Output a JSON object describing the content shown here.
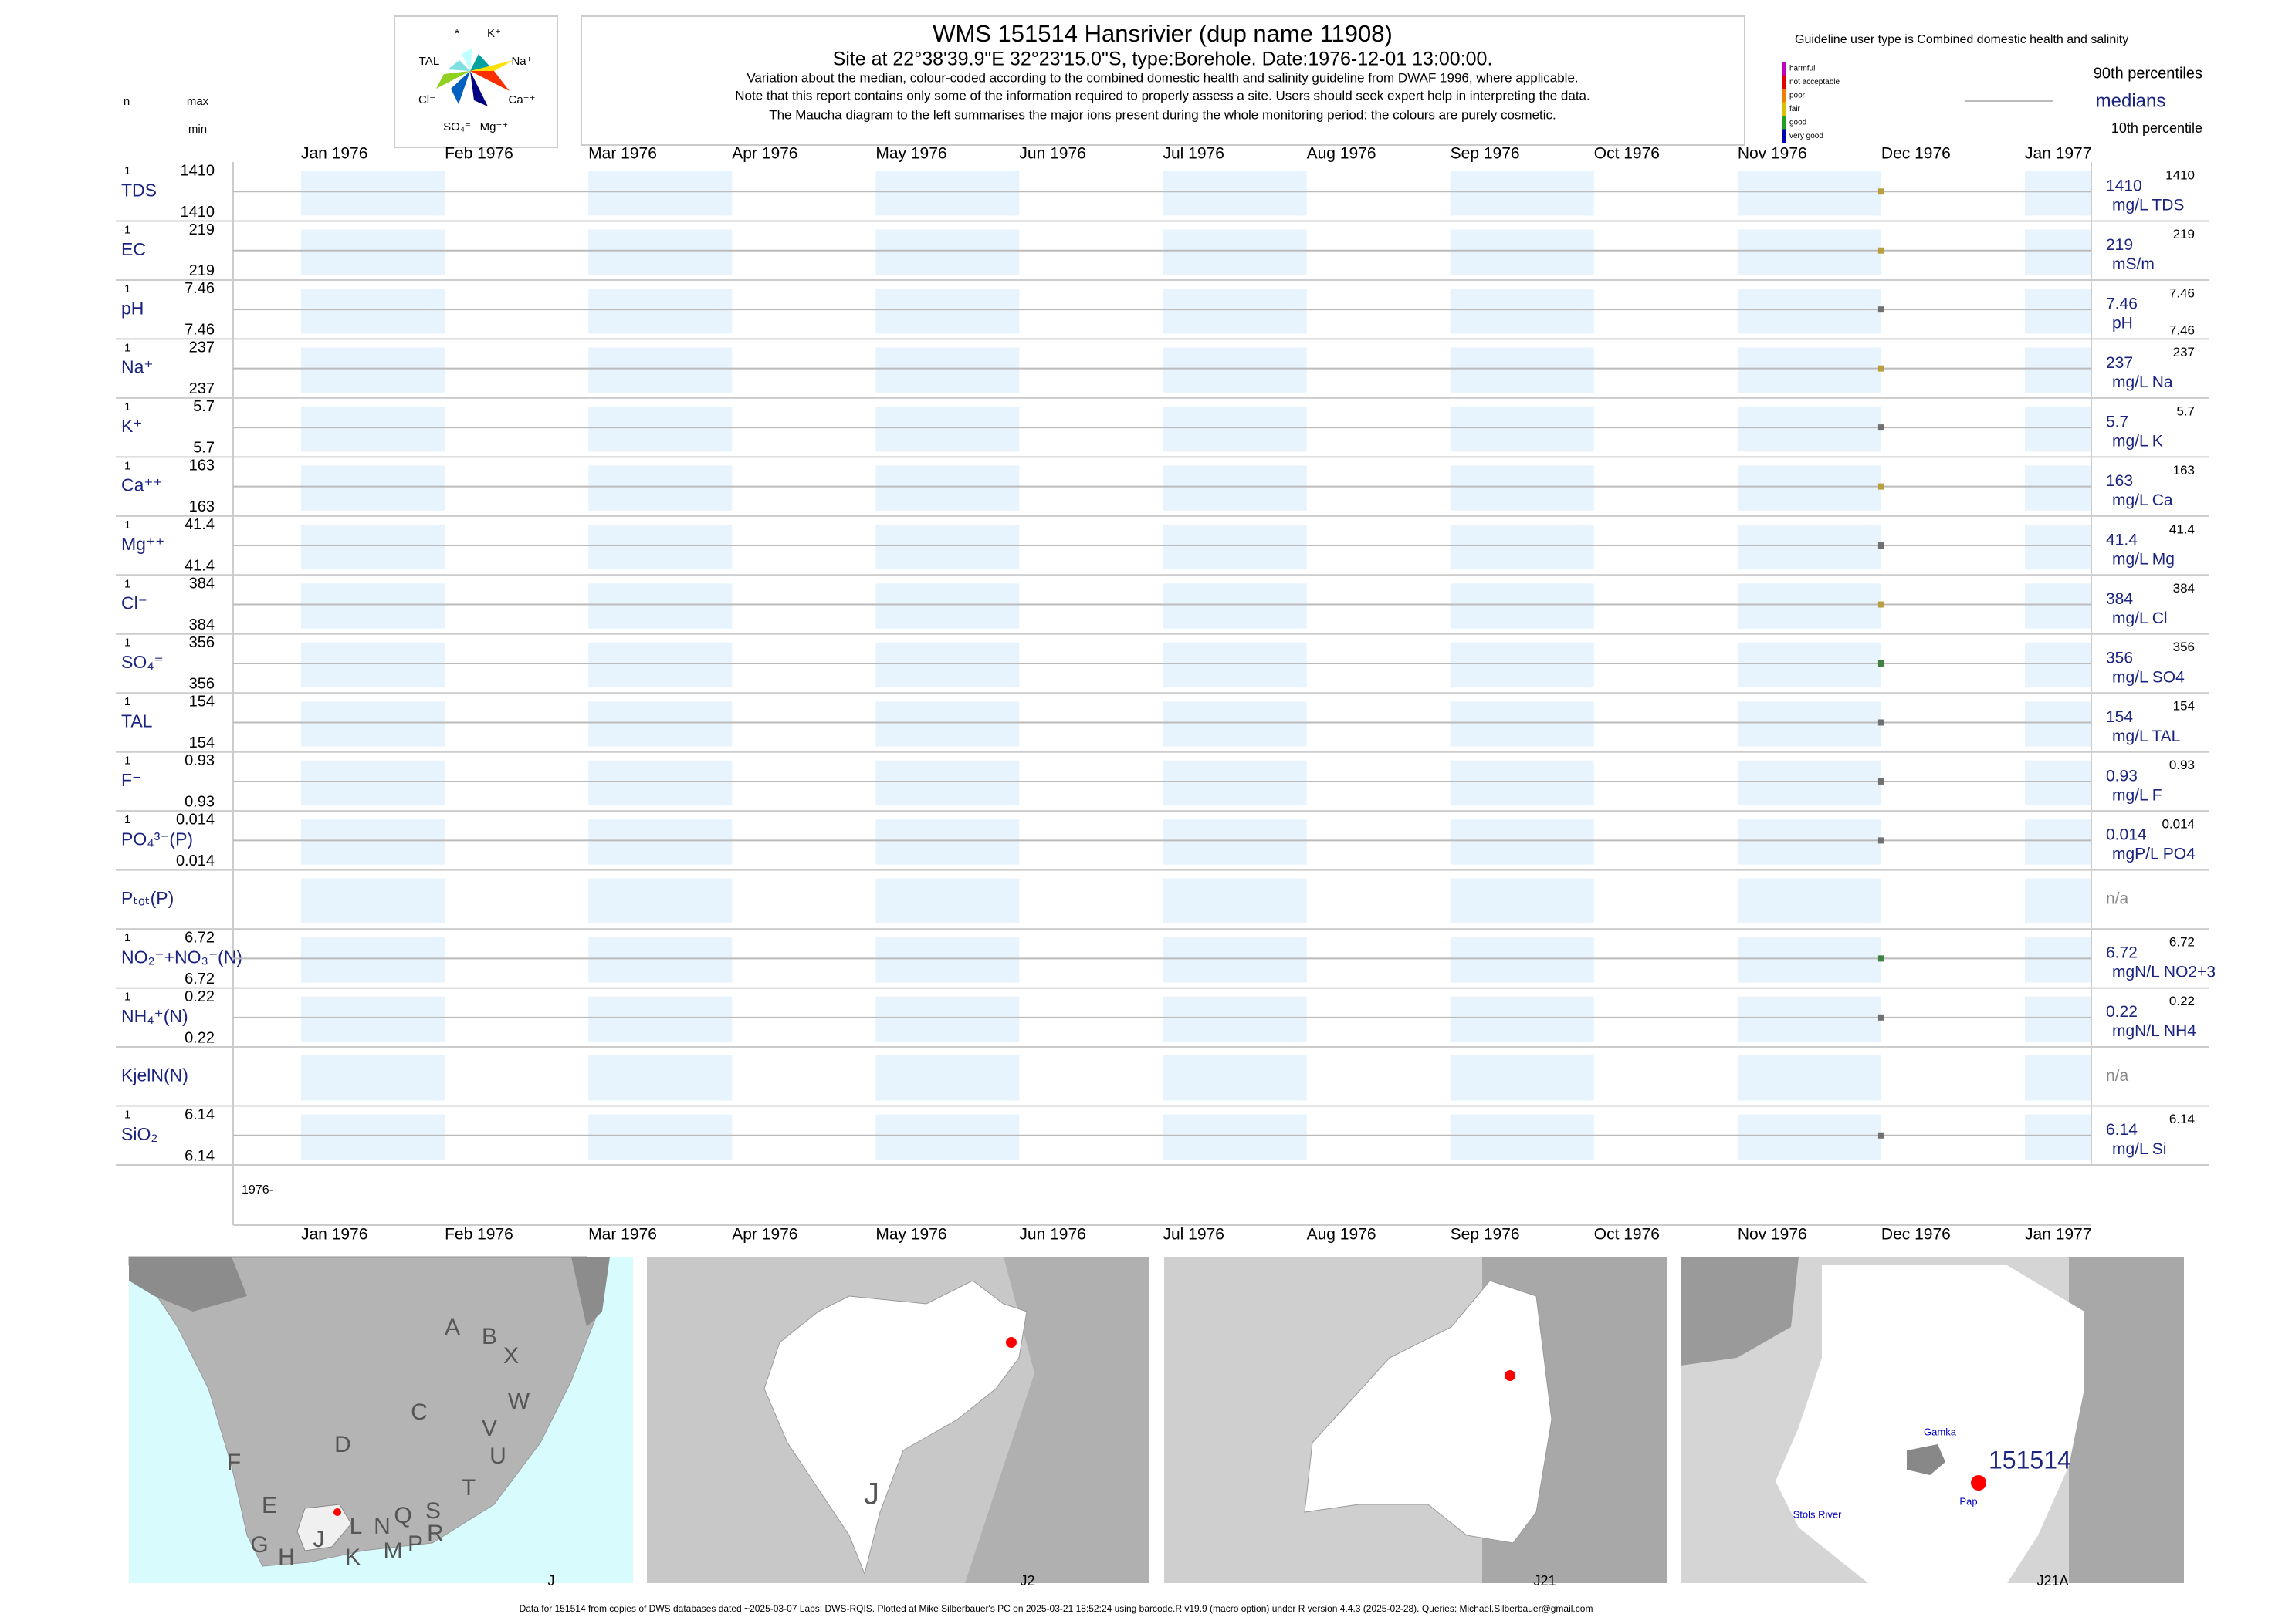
{
  "header": {
    "title": "WMS 151514  Hansrivier (dup name 11908)",
    "subtitle": "Site at 22°38'39.9\"E 32°23'15.0\"S, type:Borehole. Date:1976-12-01 13:00:00.",
    "notes": [
      "Variation about the median,  colour-coded according to the combined domestic health and salinity guideline from DWAF 1996, where applicable.",
      "Note that this report contains only some of the information required to properly assess a site. Users should seek expert help in interpreting the data.",
      "The Maucha diagram to the left summarises the major ions present during the whole monitoring period: the colours are purely cosmetic."
    ]
  },
  "maucha": {
    "labels": [
      "*",
      "K⁺",
      "TAL",
      "Na⁺",
      "Cl⁻",
      "Ca⁺⁺",
      "SO₄⁼",
      "Mg⁺⁺"
    ]
  },
  "legend": {
    "guideline": "Guideline user type is Combined domestic health and salinity",
    "classes": [
      {
        "name": "harmful",
        "color": "#c000c0"
      },
      {
        "name": "not acceptable",
        "color": "#e00000"
      },
      {
        "name": "poor",
        "color": "#f08000"
      },
      {
        "name": "fair",
        "color": "#d8c000"
      },
      {
        "name": "good",
        "color": "#20a020"
      },
      {
        "name": "very good",
        "color": "#0000b0"
      }
    ],
    "p90": "90th percentiles",
    "median": "medians",
    "p10": "10th percentile"
  },
  "columns": {
    "n": "n",
    "max": "max",
    "min": "min"
  },
  "chart_data": {
    "type": "strip",
    "categories": [
      "Jan 1976",
      "Feb 1976",
      "Mar 1976",
      "Apr 1976",
      "May 1976",
      "Jun 1976",
      "Jul 1976",
      "Aug 1976",
      "Sep 1976",
      "Oct 1976",
      "Nov 1976",
      "Dec 1976",
      "Jan 1977"
    ],
    "sample_date": "1976-12-01",
    "period_label": "1976-",
    "rows": [
      {
        "name": "TDS",
        "n": 1,
        "max": 1410,
        "min": 1410,
        "median": 1410,
        "p90": 1410,
        "unit": "mg/L TDS",
        "color": "#b8a040"
      },
      {
        "name": "EC",
        "n": 1,
        "max": 219,
        "min": 219,
        "median": 219,
        "p90": 219,
        "unit": "mS/m",
        "color": "#b8a040"
      },
      {
        "name": "pH",
        "n": 1,
        "max": 7.46,
        "min": 7.46,
        "median": 7.46,
        "p90": 7.46,
        "p10": 7.46,
        "unit": "pH",
        "color": "#707070"
      },
      {
        "name": "Na⁺",
        "n": 1,
        "max": 237,
        "min": 237,
        "median": 237,
        "p90": 237,
        "unit": "mg/L Na",
        "color": "#b8a040"
      },
      {
        "name": "K⁺",
        "n": 1,
        "max": 5.7,
        "min": 5.7,
        "median": 5.7,
        "p90": 5.7,
        "unit": "mg/L K",
        "color": "#707070"
      },
      {
        "name": "Ca⁺⁺",
        "n": 1,
        "max": 163,
        "min": 163,
        "median": 163,
        "p90": 163,
        "unit": "mg/L Ca",
        "color": "#b8a040"
      },
      {
        "name": "Mg⁺⁺",
        "n": 1,
        "max": 41.4,
        "min": 41.4,
        "median": 41.4,
        "p90": 41.4,
        "unit": "mg/L Mg",
        "color": "#707070"
      },
      {
        "name": "Cl⁻",
        "n": 1,
        "max": 384,
        "min": 384,
        "median": 384,
        "p90": 384,
        "unit": "mg/L Cl",
        "color": "#b8a040"
      },
      {
        "name": "SO₄⁼",
        "n": 1,
        "max": 356,
        "min": 356,
        "median": 356,
        "p90": 356,
        "unit": "mg/L SO4",
        "color": "#408040"
      },
      {
        "name": "TAL",
        "n": 1,
        "max": 154,
        "min": 154,
        "median": 154,
        "p90": 154,
        "unit": "mg/L TAL",
        "color": "#707070"
      },
      {
        "name": "F⁻",
        "n": 1,
        "max": 0.93,
        "min": 0.93,
        "median": 0.93,
        "p90": 0.93,
        "unit": "mg/L F",
        "color": "#707070"
      },
      {
        "name": "PO₄³⁻(P)",
        "n": 1,
        "max": 0.014,
        "min": 0.014,
        "median": 0.014,
        "p90": 0.014,
        "unit": "mgP/L PO4",
        "color": "#707070"
      },
      {
        "name": "Pₜₒₜ(P)",
        "status": "n/a"
      },
      {
        "name": "NO₂⁻+NO₃⁻(N)",
        "n": 1,
        "max": 6.72,
        "min": 6.72,
        "median": 6.72,
        "p90": 6.72,
        "unit": "mgN/L NO2+3",
        "color": "#408040"
      },
      {
        "name": "NH₄⁺(N)",
        "n": 1,
        "max": 0.22,
        "min": 0.22,
        "median": 0.22,
        "p90": 0.22,
        "unit": "mgN/L NH4",
        "color": "#707070"
      },
      {
        "name": "KjelN(N)",
        "status": "n/a"
      },
      {
        "name": "SiO₂",
        "n": 1,
        "max": 6.14,
        "min": 6.14,
        "median": 6.14,
        "p90": 6.14,
        "unit": "mg/L Si",
        "color": "#707070"
      }
    ]
  },
  "maps": {
    "panels": [
      {
        "label": "J",
        "letters": [
          "A",
          "B",
          "X",
          "W",
          "C",
          "V",
          "U",
          "D",
          "F",
          "T",
          "E",
          "J",
          "L",
          "N",
          "Q",
          "S",
          "R",
          "G",
          "H",
          "K",
          "M",
          "P"
        ]
      },
      {
        "label": "J2",
        "letters": [
          "J"
        ]
      },
      {
        "label": "J21"
      },
      {
        "label": "J21A",
        "places": [
          "Gamka",
          "Pap",
          "Stols River"
        ],
        "site": "151514"
      }
    ]
  },
  "footer": "Data for 151514 from copies of DWS databases dated ~2025-03-07 Labs: DWS-RQIS. Plotted at Mike Silberbauer's PC on 2025-03-21 18:52:24 using barcode.R v19.9 (macro option) under R version 4.4.3 (2025-02-28). Queries: Michael.Silberbauer@gmail.com"
}
